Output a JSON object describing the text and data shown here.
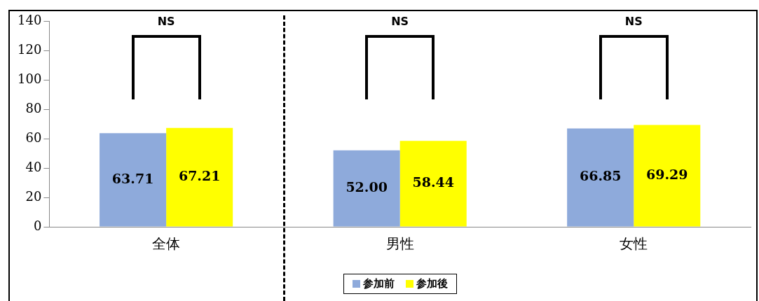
{
  "chart_data": {
    "type": "bar",
    "categories": [
      "全体",
      "男性",
      "女性"
    ],
    "series": [
      {
        "name": "参加前",
        "color": "#8eaadb",
        "values": [
          63.71,
          52.0,
          66.85
        ],
        "value_labels": [
          "63.71",
          "52.00",
          "66.85"
        ]
      },
      {
        "name": "参加後",
        "color": "#ffff00",
        "values": [
          67.21,
          58.44,
          69.29
        ],
        "value_labels": [
          "67.21",
          "58.44",
          "69.29"
        ]
      }
    ],
    "ylim": [
      0,
      140
    ],
    "yticks": [
      0,
      20,
      40,
      60,
      80,
      100,
      120,
      140
    ],
    "grid": false,
    "legend": "bottom",
    "annotations": [
      "NS",
      "NS",
      "NS"
    ]
  }
}
